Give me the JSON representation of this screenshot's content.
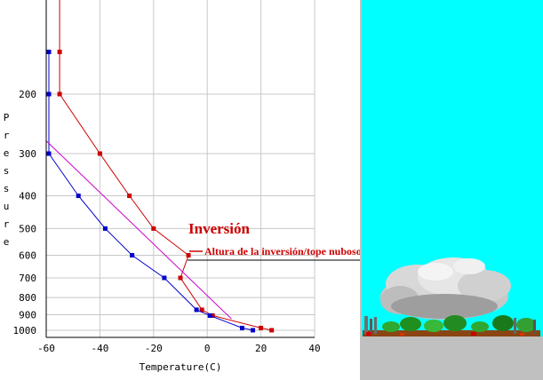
{
  "chart_data": {
    "type": "line",
    "title": "",
    "xlabel": "Temperature(C)",
    "ylabel": "Pressure",
    "xlim": [
      -60,
      40
    ],
    "ylim": [
      1050,
      100
    ],
    "y_scale": "log",
    "grid": true,
    "x_ticks": [
      -60,
      -40,
      -20,
      0,
      20,
      40
    ],
    "y_ticks": [
      200,
      300,
      400,
      500,
      600,
      700,
      800,
      900,
      1000
    ],
    "series": [
      {
        "name": "",
        "color": "#cc0000",
        "points": [
          [
            24,
            1000
          ],
          [
            20,
            985
          ],
          [
            2,
            905
          ],
          [
            -2,
            870
          ],
          [
            -10,
            700
          ],
          [
            -7,
            600
          ],
          [
            -20,
            500
          ],
          [
            -29,
            400
          ],
          [
            -40,
            300
          ],
          [
            -55,
            200
          ],
          [
            -55,
            150
          ],
          [
            -55,
            100
          ]
        ]
      },
      {
        "name": "",
        "color": "#0000cc",
        "points": [
          [
            17,
            1000
          ],
          [
            13,
            985
          ],
          [
            1,
            905
          ],
          [
            -4,
            870
          ],
          [
            -16,
            700
          ],
          [
            -28,
            600
          ],
          [
            -38,
            500
          ],
          [
            -48,
            400
          ],
          [
            -59,
            300
          ],
          [
            -59,
            200
          ],
          [
            -59,
            150
          ]
        ]
      },
      {
        "name": "",
        "color": "#cc00cc",
        "points": [
          [
            9,
            925
          ],
          [
            -60,
            275
          ]
        ]
      }
    ],
    "annotations": {
      "inversion_label": "Inversión",
      "top_label": "Altura de la inversión/tope nuboso"
    }
  },
  "scene": {
    "sky_color": "#00ffff",
    "ground_color": "#c0c0c0"
  }
}
